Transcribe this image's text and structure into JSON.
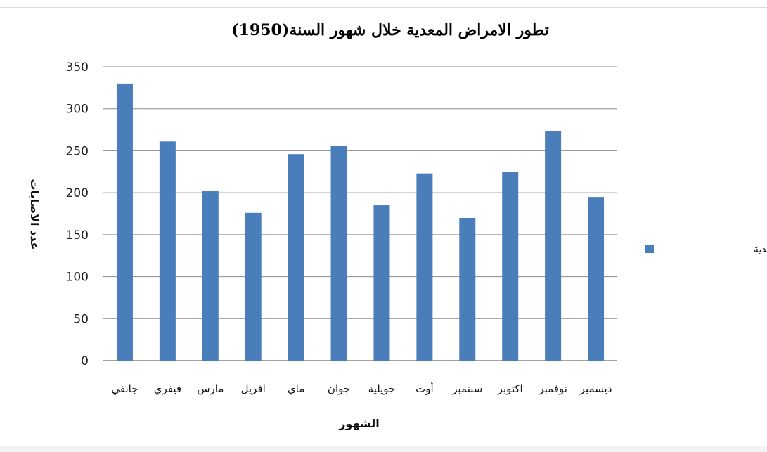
{
  "chart_data": {
    "type": "bar",
    "title": "تطور الامراض المعدية خلال شهور السنة(1950)",
    "xlabel": "الشهور",
    "ylabel": "عدد الاصابات",
    "categories": [
      "جانفي",
      "فيفري",
      "مارس",
      "افريل",
      "ماي",
      "جوان",
      "جويلية",
      "أوت",
      "سبتمبر",
      "اكتوبر",
      "نوفمبر",
      "ديسمبر"
    ],
    "series": [
      {
        "name": "الامراض المعدية",
        "values": [
          330,
          261,
          202,
          176,
          246,
          256,
          185,
          223,
          170,
          225,
          273,
          195
        ]
      }
    ],
    "ylim": [
      0,
      350
    ],
    "yticks": [
      0,
      50,
      100,
      150,
      200,
      250,
      300,
      350
    ],
    "grid": true,
    "legend": "right",
    "colors": {
      "bar": "#4a7ebb",
      "grid": "#8c8c8c"
    }
  }
}
